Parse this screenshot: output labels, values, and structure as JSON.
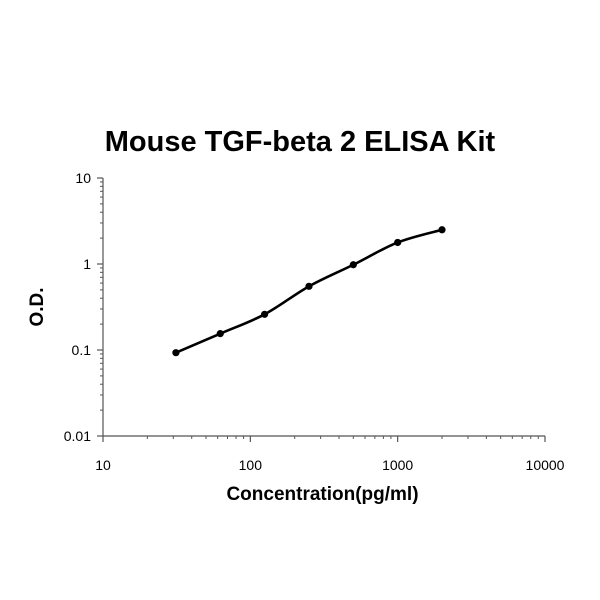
{
  "chart_data": {
    "type": "line",
    "title": "Mouse TGF-beta 2 ELISA Kit",
    "xlabel": "Concentration(pg/ml)",
    "ylabel": "O.D.",
    "x_scale": "log",
    "y_scale": "log",
    "xlim": [
      10,
      10000
    ],
    "ylim": [
      0.01,
      10
    ],
    "x_ticks": [
      "10",
      "100",
      "1000",
      "10000"
    ],
    "y_ticks": [
      "0.01",
      "0.1",
      "1",
      "10"
    ],
    "grid": false,
    "colors": {
      "line": "#000000",
      "points": "#000000"
    },
    "series": [
      {
        "x": [
          31.25,
          62.5,
          125,
          250,
          500,
          1000,
          2000
        ],
        "y": [
          0.093,
          0.155,
          0.26,
          0.55,
          0.98,
          1.78,
          2.5
        ]
      }
    ]
  }
}
